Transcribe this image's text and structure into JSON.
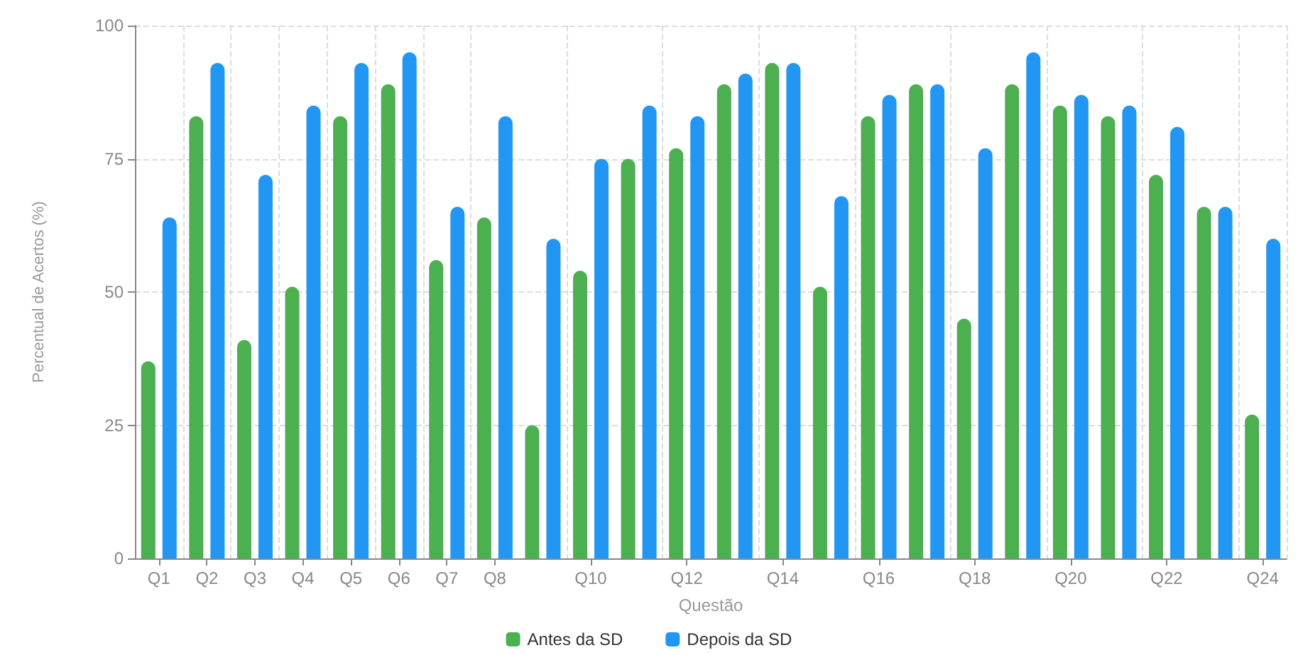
{
  "chart_data": {
    "type": "bar",
    "xlabel": "Questão",
    "ylabel": "Percentual de Acertos (%)",
    "categories": [
      "Q1",
      "Q2",
      "Q3",
      "Q4",
      "Q5",
      "Q6",
      "Q7",
      "Q8",
      null,
      "Q10",
      null,
      "Q12",
      null,
      "Q14",
      null,
      "Q16",
      null,
      "Q18",
      null,
      "Q20",
      null,
      "Q22",
      null,
      "Q24"
    ],
    "series": [
      {
        "name": "Antes da SD",
        "color": "#4caf50",
        "values": [
          37,
          83,
          41,
          51,
          83,
          89,
          56,
          64,
          25,
          54,
          75,
          77,
          89,
          93,
          51,
          83,
          89,
          45,
          89,
          85,
          83,
          72,
          66,
          27
        ]
      },
      {
        "name": "Depois da SD",
        "color": "#2196f3",
        "values": [
          64,
          93,
          72,
          85,
          93,
          95,
          66,
          83,
          60,
          75,
          85,
          83,
          91,
          93,
          68,
          87,
          89,
          77,
          95,
          87,
          85,
          81,
          66,
          60
        ]
      }
    ],
    "ylim": [
      0,
      100
    ],
    "yticks": [
      0,
      25,
      50,
      75,
      100
    ],
    "grid": true,
    "legend": "bottom"
  }
}
